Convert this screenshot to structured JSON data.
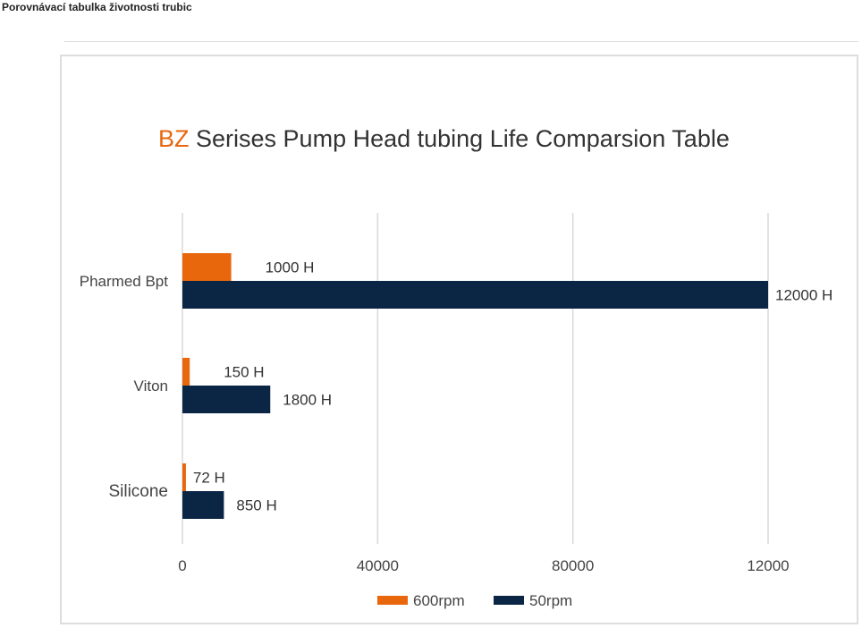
{
  "page": {
    "heading": "Porovnávací tabulka životnosti trubic"
  },
  "colors": {
    "series_600": "#e8670d",
    "series_50": "#0b2545",
    "grid": "#d9d9d9",
    "title_accent": "#e8670d"
  },
  "chart_data": {
    "type": "bar",
    "orientation": "horizontal",
    "title_accent": "BZ",
    "title_rest": " Serises Pump Head tubing Life Comparsion Table",
    "categories": [
      "Pharmed Bpt",
      "Viton",
      "Silicone"
    ],
    "series": [
      {
        "name": "600rpm",
        "values": [
          1000,
          150,
          72
        ],
        "labels": [
          "1000 H",
          "150 H",
          "72 H"
        ]
      },
      {
        "name": "50rpm",
        "values": [
          12000,
          1800,
          850
        ],
        "labels": [
          "12000 H",
          "1800 H",
          "850 H"
        ]
      }
    ],
    "x_ticks": [
      "0",
      "40000",
      "80000",
      "12000"
    ],
    "xlim": [
      0,
      12000
    ],
    "grid": true,
    "legend": "bottom"
  }
}
